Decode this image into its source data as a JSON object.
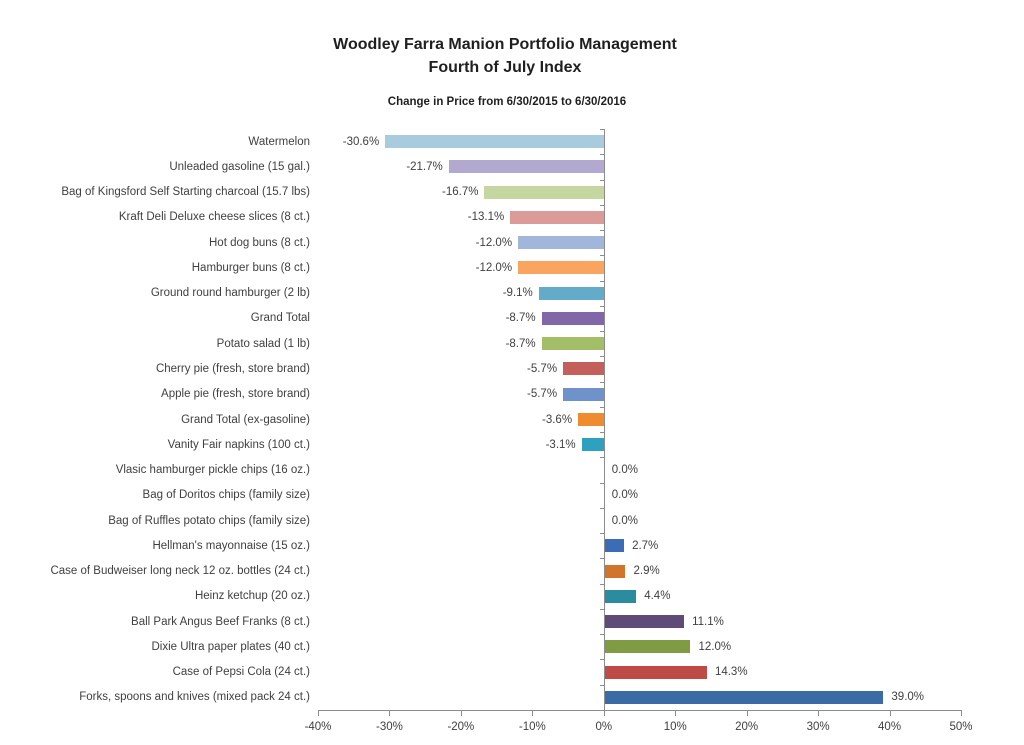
{
  "title_line1": "Woodley Farra Manion Portfolio Management",
  "title_line2": "Fourth of July Index",
  "subtitle": "Change in Price from 6/30/2015 to 6/30/2016",
  "chart_data": {
    "type": "bar",
    "orientation": "horizontal",
    "title": "Woodley Farra Manion Portfolio Management Fourth of July Index",
    "subtitle": "Change in Price from 6/30/2015 to 6/30/2016",
    "xlabel": "",
    "ylabel": "",
    "grid": false,
    "legend": "none",
    "categories": [
      "Watermelon",
      "Unleaded gasoline (15 gal.)",
      "Bag of Kingsford Self Starting charcoal (15.7 lbs)",
      "Kraft Deli Deluxe cheese slices (8 ct.)",
      "Hot dog buns (8 ct.)",
      "Hamburger buns (8 ct.)",
      "Ground round hamburger (2 lb)",
      "Grand Total",
      "Potato salad (1 lb)",
      "Cherry pie (fresh, store brand)",
      "Apple pie (fresh, store brand)",
      "Grand Total (ex-gasoline)",
      "Vanity Fair napkins (100 ct.)",
      "Vlasic hamburger pickle chips (16 oz.)",
      "Bag of Doritos chips (family size)",
      "Bag of Ruffles potato chips (family size)",
      "Hellman's mayonnaise (15 oz.)",
      "Case of Budweiser long neck 12 oz. bottles (24 ct.)",
      "Heinz ketchup (20 oz.)",
      "Ball Park Angus Beef Franks (8 ct.)",
      "Dixie Ultra paper plates (40 ct.)",
      "Case of Pepsi Cola (24 ct.)",
      "Forks, spoons and knives (mixed pack 24 ct.)"
    ],
    "values": [
      -30.6,
      -21.7,
      -16.7,
      -13.1,
      -12.0,
      -12.0,
      -9.1,
      -8.7,
      -8.7,
      -5.7,
      -5.7,
      -3.6,
      -3.1,
      0.0,
      0.0,
      0.0,
      2.7,
      2.9,
      4.4,
      11.1,
      12.0,
      14.3,
      39.0
    ],
    "value_labels": [
      "-30.6%",
      "-21.7%",
      "-16.7%",
      "-13.1%",
      "-12.0%",
      "-12.0%",
      "-9.1%",
      "-8.7%",
      "-8.7%",
      "-5.7%",
      "-5.7%",
      "-3.6%",
      "-3.1%",
      "0.0%",
      "0.0%",
      "0.0%",
      "2.7%",
      "2.9%",
      "4.4%",
      "11.1%",
      "12.0%",
      "14.3%",
      "39.0%"
    ],
    "bar_colors": [
      "#a8cbde",
      "#b2a8d0",
      "#c5d6a0",
      "#db9b99",
      "#a2b6db",
      "#f9a55f",
      "#62acca",
      "#8167a8",
      "#a2be66",
      "#c4605c",
      "#7092cb",
      "#ee8c2f",
      "#2ea1be",
      null,
      null,
      null,
      "#3c6cb5",
      "#d0752b",
      "#2b8c9f",
      "#5f4b78",
      "#7f9b44",
      "#be4b48",
      "#3c6aa5"
    ],
    "axis": {
      "min": -40,
      "max": 50,
      "tick_step": 10,
      "ticks": [
        -40,
        -30,
        -20,
        -10,
        0,
        10,
        20,
        30,
        40,
        50
      ],
      "tick_labels": [
        "-40%",
        "-30%",
        "-20%",
        "-10%",
        "0%",
        "10%",
        "20%",
        "30%",
        "40%",
        "50%"
      ]
    },
    "axis_color": "#8c8c8c",
    "text_color": "#3f3f3f"
  }
}
